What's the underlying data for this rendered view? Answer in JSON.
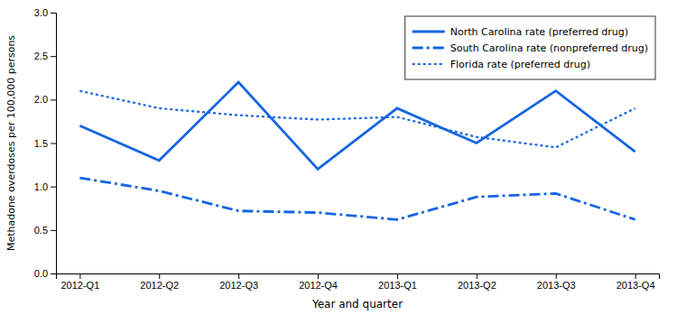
{
  "chart_data": {
    "type": "line",
    "xlabel": "Year and quarter",
    "ylabel": "Methadone overdoses per 100,000 persons",
    "categories": [
      "2012-Q1",
      "2012-Q2",
      "2012-Q3",
      "2012-Q4",
      "2013-Q1",
      "2013-Q2",
      "2013-Q3",
      "2013-Q4"
    ],
    "series": [
      {
        "name": "North Carolina rate (preferred drug)",
        "color": "#1565e0",
        "line_style": "solid",
        "values": [
          1.7,
          1.3,
          2.2,
          1.2,
          1.9,
          1.5,
          2.1,
          1.4
        ]
      },
      {
        "name": "South Carolina rate (nonpreferred drug)",
        "color": "#1565e0",
        "line_style": "dashdot",
        "values": [
          1.1,
          0.95,
          0.72,
          0.7,
          0.62,
          0.88,
          0.92,
          0.62
        ]
      },
      {
        "name": "Florida rate (preferred drug)",
        "color": "#1565e0",
        "line_style": "dotted",
        "values": [
          2.1,
          1.9,
          1.82,
          1.77,
          1.8,
          1.57,
          1.45,
          1.9
        ]
      }
    ],
    "ylim": [
      0,
      3.0
    ],
    "yticks": [
      {
        "value": 0,
        "label": "0.0"
      },
      0.5,
      {
        "value": 1.0,
        "label": "1.0"
      },
      1.5,
      {
        "value": 2.0,
        "label": "2.0"
      },
      2.5,
      {
        "value": 3.0,
        "label": "3.0"
      }
    ],
    "grid": false,
    "legend": "upper-right"
  }
}
